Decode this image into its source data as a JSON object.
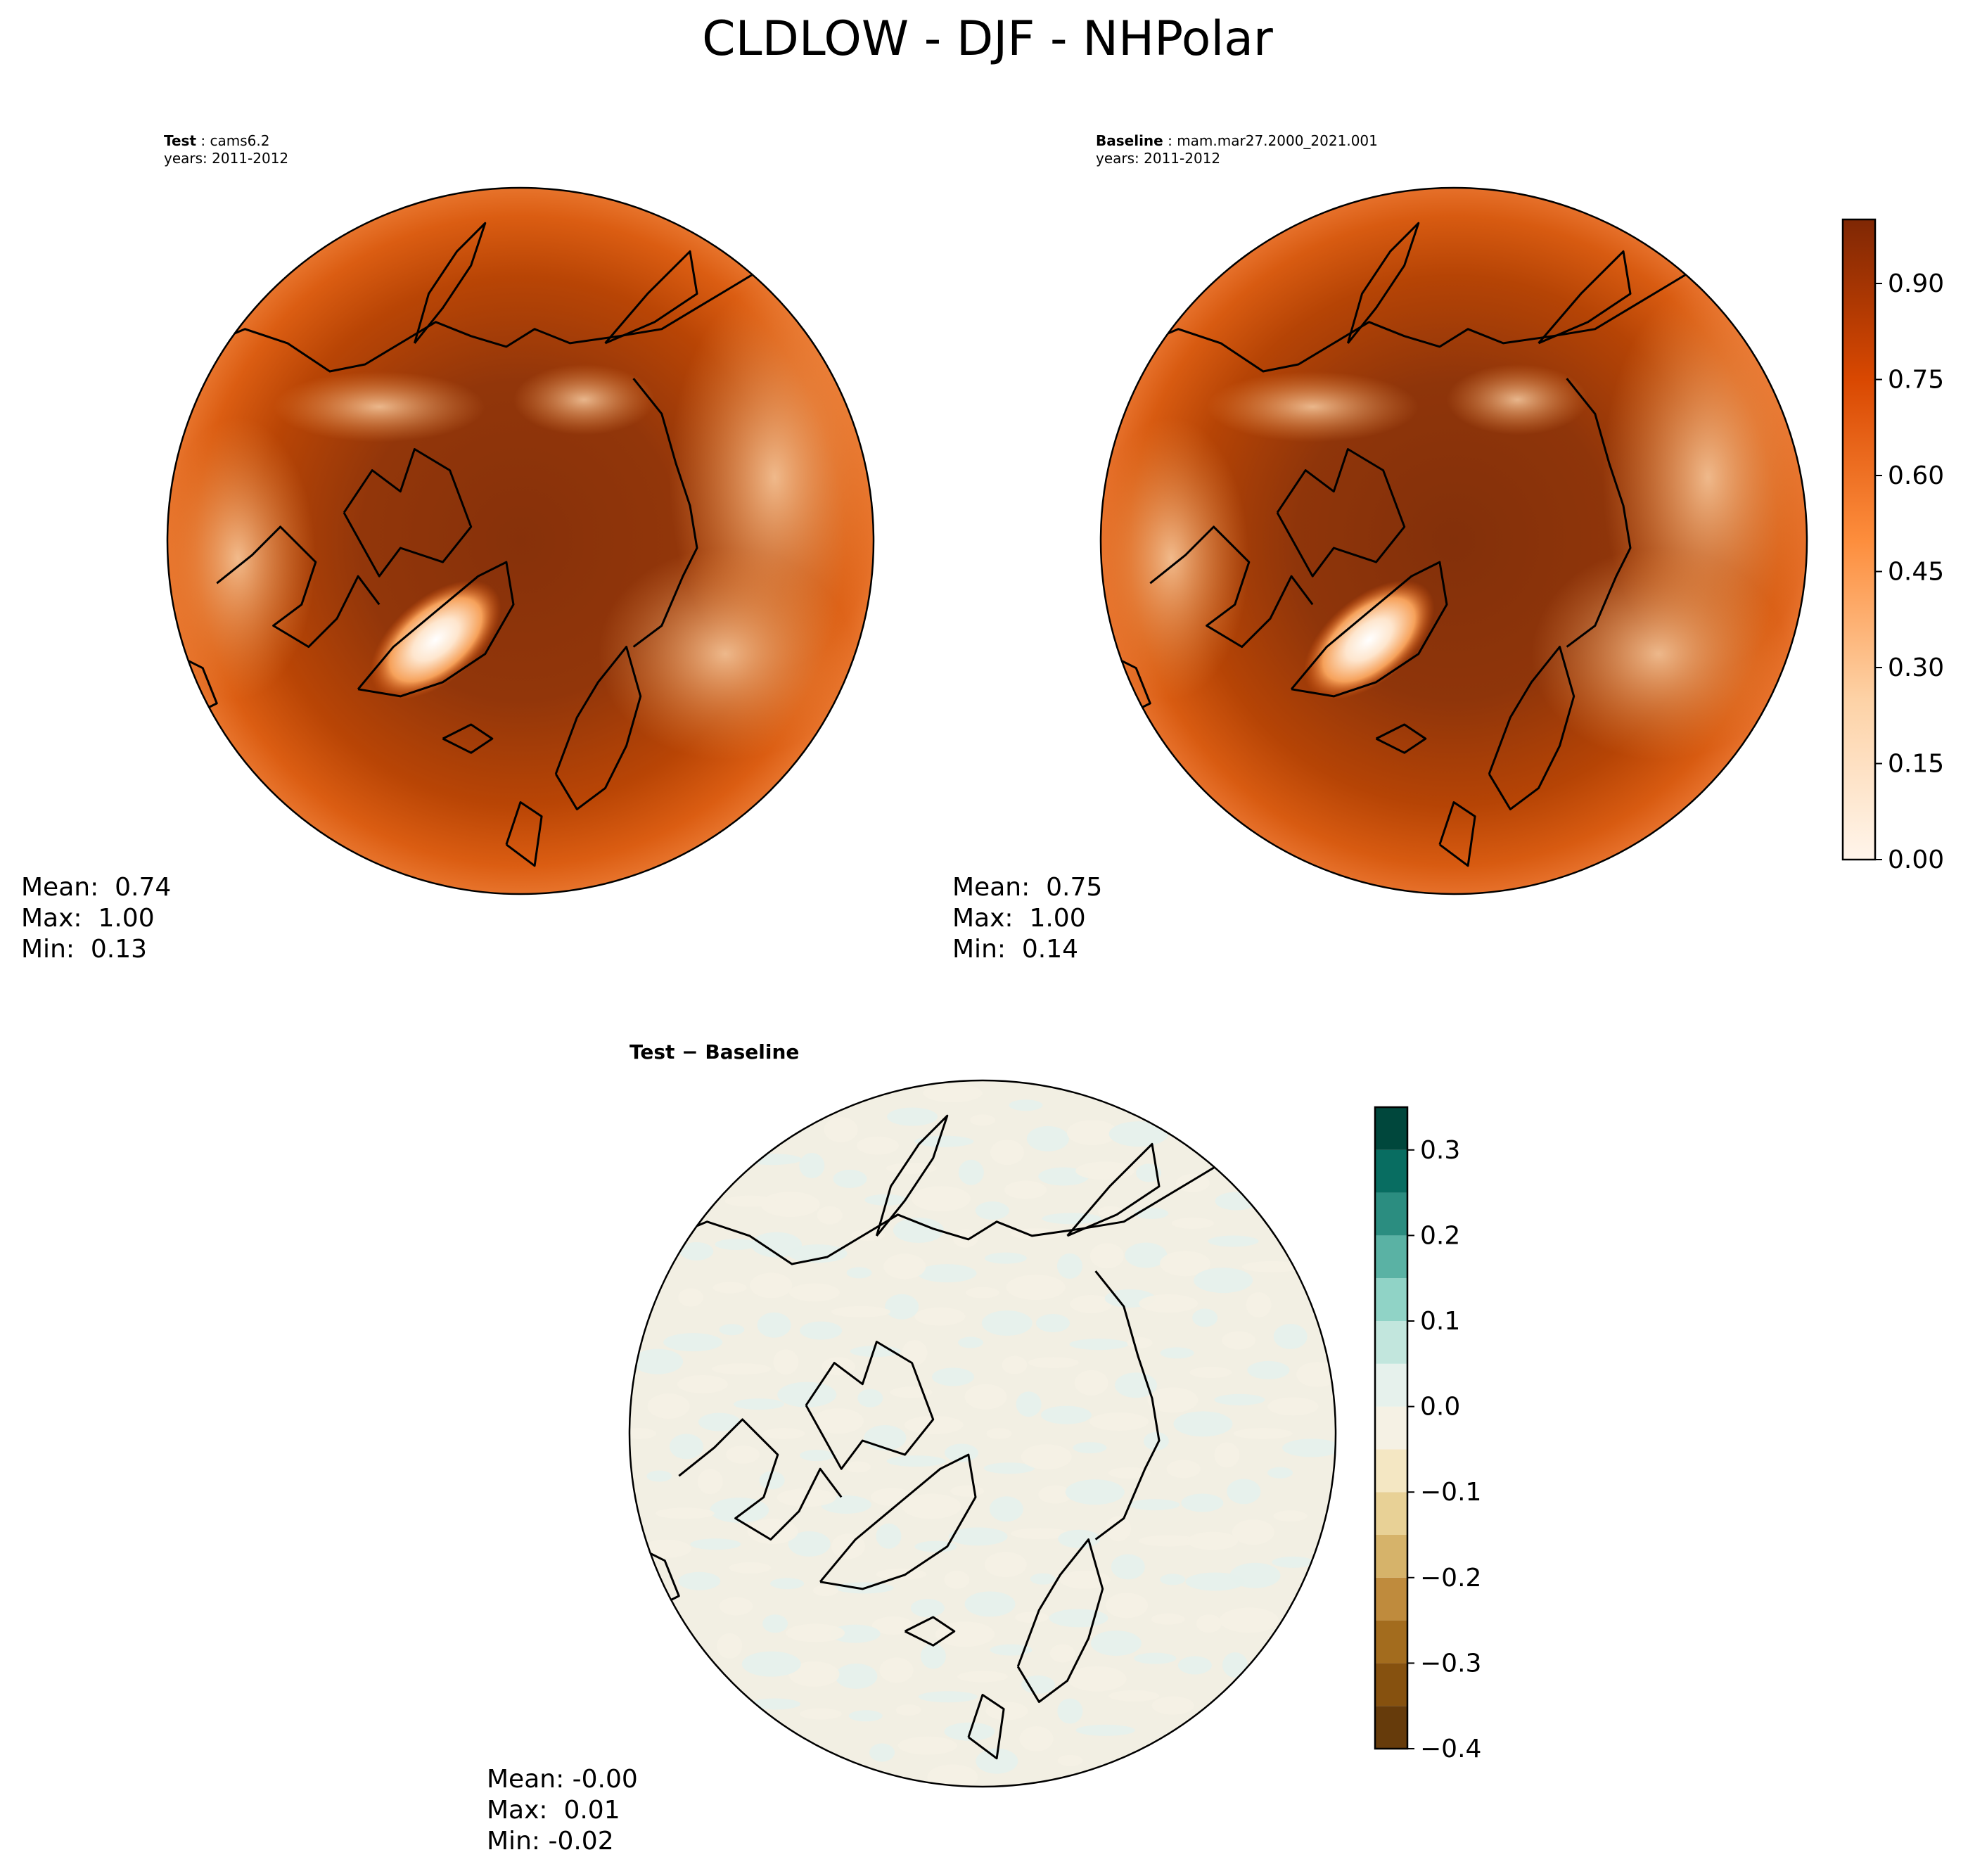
{
  "figure": {
    "title": "CLDLOW - DJF - NHPolar"
  },
  "panels": [
    {
      "id": "test",
      "label": "Test",
      "case": "cams6.2",
      "years": "years: 2011-2012",
      "stats": {
        "mean": "Mean:  0.74",
        "max": "Max:  1.00",
        "min": "Min:  0.13"
      }
    },
    {
      "id": "baseline",
      "label": "Baseline",
      "case": "mam.mar27.2000_2021.001",
      "years": "years: 2011-2012",
      "stats": {
        "mean": "Mean:  0.75",
        "max": "Max:  1.00",
        "min": "Min:  0.14"
      }
    },
    {
      "id": "difference",
      "label": "Test − Baseline",
      "stats": {
        "mean": "Mean: -0.00",
        "max": "Max:  0.01",
        "min": "Min: -0.02"
      }
    }
  ],
  "chart_data": [
    {
      "type": "heatmap",
      "projection": "north-polar-stereographic",
      "variable": "CLDLOW",
      "season": "DJF",
      "panel": "test",
      "colormap": "Oranges",
      "colorbar": {
        "shared_with": "baseline",
        "range": [
          0.0,
          1.0
        ],
        "ticks": [
          0.0,
          0.15,
          0.3,
          0.45,
          0.6,
          0.75,
          0.9
        ],
        "tick_labels": [
          "0.00",
          "0.15",
          "0.30",
          "0.45",
          "0.60",
          "0.75",
          "0.90"
        ],
        "levels": 20
      },
      "summary": {
        "mean": 0.74,
        "max": 1.0,
        "min": 0.13
      }
    },
    {
      "type": "heatmap",
      "projection": "north-polar-stereographic",
      "variable": "CLDLOW",
      "season": "DJF",
      "panel": "baseline",
      "colormap": "Oranges",
      "colorbar": {
        "range": [
          0.0,
          1.0
        ],
        "ticks": [
          0.0,
          0.15,
          0.3,
          0.45,
          0.6,
          0.75,
          0.9
        ],
        "tick_labels": [
          "0.00",
          "0.15",
          "0.30",
          "0.45",
          "0.60",
          "0.75",
          "0.90"
        ],
        "levels": 20
      },
      "summary": {
        "mean": 0.75,
        "max": 1.0,
        "min": 0.14
      }
    },
    {
      "type": "heatmap",
      "projection": "north-polar-stereographic",
      "variable": "CLDLOW",
      "season": "DJF",
      "panel": "difference",
      "colormap": "BrBG",
      "colorbar": {
        "range": [
          -0.4,
          0.35
        ],
        "ticks": [
          -0.4,
          -0.3,
          -0.2,
          -0.1,
          0.0,
          0.1,
          0.2,
          0.3
        ],
        "tick_labels": [
          "−0.4",
          "−0.3",
          "−0.2",
          "−0.1",
          "0.0",
          "0.1",
          "0.2",
          "0.3"
        ],
        "level_colors": [
          "#663b0b",
          "#86510f",
          "#a36c1e",
          "#bf8b3d",
          "#d6b36a",
          "#e8d196",
          "#f4e7c3",
          "#f5f1e4",
          "#e6f1ec",
          "#c2e6dd",
          "#90d3c6",
          "#5ab2a4",
          "#2b8d80",
          "#086d61",
          "#00473c"
        ]
      },
      "summary": {
        "mean": -0.0,
        "max": 0.01,
        "min": -0.02
      }
    }
  ]
}
